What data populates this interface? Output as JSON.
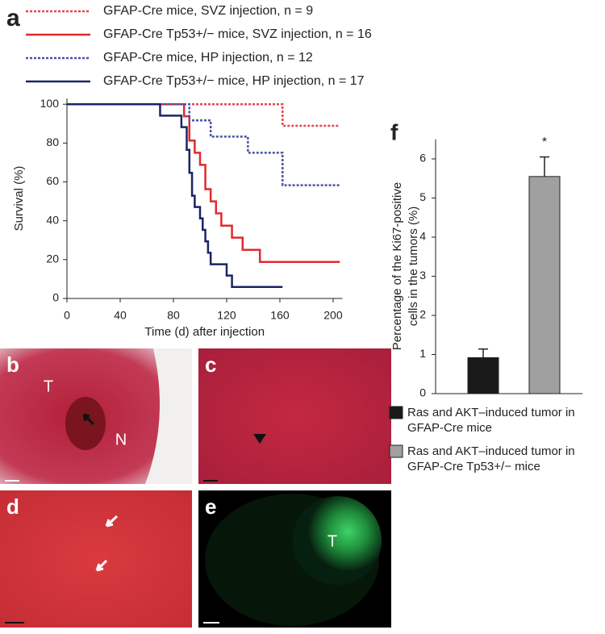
{
  "figure_labels": {
    "a": "a",
    "f": "f"
  },
  "chart_data": [
    {
      "type": "step",
      "xlabel": "Time (d) after injection",
      "ylabel": "Survival (%)",
      "xlim": [
        0,
        207
      ],
      "ylim": [
        0,
        103
      ],
      "xticks": [
        0,
        40,
        80,
        120,
        160,
        200
      ],
      "yticks": [
        0,
        20,
        40,
        60,
        80,
        100
      ],
      "series": [
        {
          "name": "GFAP-Cre mice, SVZ injection, n = 9",
          "color": "#e8464b",
          "dash": true,
          "x": [
            0,
            162,
            162,
            205
          ],
          "values": [
            100,
            100,
            88.9,
            88.9
          ]
        },
        {
          "name": "GFAP-Cre Tp53+/− mice, SVZ injection, n = 16",
          "color": "#e02a2f",
          "dash": false,
          "x": [
            0,
            88,
            88,
            92,
            92,
            96,
            96,
            100,
            100,
            104,
            104,
            108,
            108,
            112,
            112,
            116,
            116,
            124,
            124,
            132,
            132,
            145,
            145,
            205
          ],
          "values": [
            100,
            100,
            93.8,
            93.8,
            81.3,
            81.3,
            75,
            75,
            68.8,
            68.8,
            56.3,
            56.3,
            50,
            50,
            43.8,
            43.8,
            37.5,
            37.5,
            31.3,
            31.3,
            25,
            25,
            18.8,
            18.8
          ]
        },
        {
          "name": "GFAP-Cre mice, HP injection, n = 12",
          "color": "#4a52a3",
          "dash": true,
          "x": [
            0,
            92,
            92,
            108,
            108,
            136,
            136,
            155,
            155,
            162,
            162,
            205
          ],
          "values": [
            100,
            100,
            91.7,
            91.7,
            83.3,
            83.3,
            75,
            75,
            75,
            75,
            58.3,
            58.3
          ]
        },
        {
          "name": "GFAP-Cre Tp53+/− mice, HP injection, n = 17",
          "color": "#1c2466",
          "dash": false,
          "x": [
            0,
            70,
            70,
            86,
            86,
            90,
            90,
            92,
            92,
            94,
            94,
            96,
            96,
            100,
            100,
            102,
            102,
            104,
            104,
            106,
            106,
            108,
            108,
            120,
            120,
            124,
            124,
            162
          ],
          "values": [
            100,
            100,
            94.1,
            94.1,
            88.2,
            88.2,
            76.5,
            76.5,
            64.7,
            64.7,
            52.9,
            52.9,
            47.1,
            47.1,
            41.2,
            41.2,
            35.3,
            35.3,
            29.4,
            29.4,
            23.5,
            23.5,
            17.6,
            17.6,
            11.8,
            11.8,
            5.9,
            5.9
          ]
        }
      ]
    },
    {
      "type": "bar",
      "ylabel": [
        "Percentage of the Ki67-positive",
        "cells in the tumors (%)"
      ],
      "ylim": [
        0,
        6.5
      ],
      "yticks": [
        0,
        1,
        2,
        3,
        4,
        5,
        6
      ],
      "categories": [
        "Ras and AKT–induced tumor in GFAP-Cre mice",
        "Ras and AKT–induced tumor in GFAP-Cre Tp53+/− mice"
      ],
      "values": [
        0.92,
        5.55
      ],
      "errors": [
        0.22,
        0.5
      ],
      "colors": [
        "#1a1a1a",
        "#a0a0a0"
      ],
      "annotations": [
        "",
        "*"
      ]
    }
  ],
  "panels": [
    {
      "label": "b",
      "marks": [
        "T",
        "N"
      ]
    },
    {
      "label": "c",
      "marks": []
    },
    {
      "label": "d",
      "marks": []
    },
    {
      "label": "e",
      "marks": [
        "T"
      ]
    }
  ]
}
